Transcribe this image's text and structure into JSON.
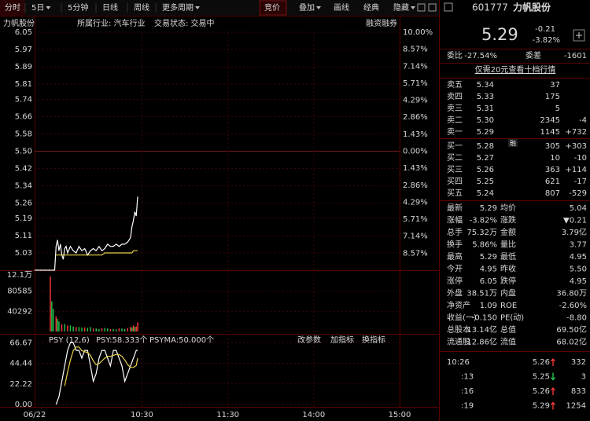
{
  "toolbar": {
    "left_tabs": [
      {
        "label": "分时"
      },
      {
        "label": "5日",
        "dropdown": true
      },
      {
        "label": "5分钟"
      },
      {
        "label": "日线"
      },
      {
        "label": "周线"
      },
      {
        "label": "更多周期",
        "dropdown": true
      }
    ],
    "right_tabs": [
      {
        "label": "竞价"
      },
      {
        "label": "叠加",
        "dropdown": true
      },
      {
        "label": "画线"
      },
      {
        "label": "经典"
      },
      {
        "label": "隐藏",
        "dropdown": true
      }
    ]
  },
  "chart_header": {
    "name": "力帆股份",
    "industry": "所属行业: 汽车行业",
    "status": "交易状态: 交易中",
    "margin": "融资融券"
  },
  "chart_data": [
    {
      "type": "line",
      "x": [
        -15,
        -1,
        0,
        1,
        2,
        3,
        4,
        5,
        6,
        7,
        8,
        10,
        12,
        14,
        16,
        18,
        20,
        22,
        24,
        26,
        28,
        30,
        32,
        34,
        36,
        38,
        40,
        42,
        44,
        46,
        48,
        50,
        52,
        53,
        54,
        55,
        56,
        57
      ],
      "series": [
        {
          "color": "#ffffff",
          "values": [
            4.95,
            4.95,
            5.06,
            5.09,
            5.04,
            5.07,
            5.02,
            5.0,
            5.05,
            5.06,
            5.03,
            5.06,
            5.04,
            5.03,
            5.06,
            5.04,
            5.05,
            5.02,
            5.04,
            5.05,
            5.04,
            5.06,
            5.04,
            5.05,
            5.07,
            5.06,
            5.06,
            5.07,
            5.06,
            5.07,
            5.07,
            5.08,
            5.1,
            5.15,
            5.18,
            5.22,
            5.2,
            5.29
          ]
        },
        {
          "color": "#e8d44c",
          "values": [
            null,
            null,
            5.02,
            5.02,
            5.02,
            5.02,
            5.02,
            5.02,
            5.02,
            5.02,
            5.02,
            5.02,
            5.02,
            5.02,
            5.02,
            5.02,
            5.02,
            5.02,
            5.02,
            5.02,
            5.02,
            5.02,
            5.02,
            5.03,
            5.03,
            5.03,
            5.03,
            5.03,
            5.03,
            5.03,
            5.03,
            5.03,
            5.03,
            5.03,
            5.04,
            5.04,
            5.04,
            5.04
          ]
        }
      ],
      "xlim": [
        -15,
        240
      ],
      "xticks": [
        {
          "value": -15,
          "label": "06/22"
        },
        {
          "value": 60,
          "label": "10:30"
        },
        {
          "value": 120,
          "label": "11:30"
        },
        {
          "value": 180,
          "label": "14:00"
        },
        {
          "value": 240,
          "label": "15:00"
        }
      ],
      "ylim": [
        4.95,
        6.05
      ],
      "yticks": [
        6.05,
        5.97,
        5.89,
        5.81,
        5.74,
        5.66,
        5.58,
        {
          "value": 5.5,
          "label": "5.50"
        },
        5.42,
        5.34,
        5.26,
        5.19,
        5.11,
        5.03
      ],
      "y2lim": [
        -10,
        10
      ],
      "y2ticks": [
        {
          "value": 10,
          "label": "10.00%"
        },
        {
          "value": 8.57,
          "label": "8.57%"
        },
        {
          "value": 7.14,
          "label": "7.14%"
        },
        {
          "value": 5.71,
          "label": "5.71%"
        },
        {
          "value": 4.29,
          "label": "4.29%"
        },
        {
          "value": 2.86,
          "label": "2.86%"
        },
        {
          "value": 1.43,
          "label": "1.43%"
        },
        {
          "value": 0,
          "label": "0.00%"
        },
        {
          "value": -1.43,
          "label": "1.43%"
        },
        {
          "value": -2.86,
          "label": "2.86%"
        },
        {
          "value": -4.29,
          "label": "4.29%"
        },
        {
          "value": -5.71,
          "label": "5.71%"
        },
        {
          "value": -7.14,
          "label": "7.14%"
        },
        {
          "value": -8.57,
          "label": "8.57%"
        }
      ],
      "grid": true
    },
    {
      "type": "bar",
      "series": [
        {
          "color": "#ff3a3a",
          "x": [
            -4,
            0,
            4,
            8,
            14,
            20,
            26,
            32,
            38,
            44,
            50,
            52,
            54,
            56,
            57
          ],
          "values": [
            110000,
            30000,
            14000,
            12000,
            9000,
            8000,
            6000,
            7000,
            5000,
            6000,
            7000,
            9000,
            12000,
            10000,
            18000
          ]
        },
        {
          "color": "#22c84a",
          "x": [
            -3,
            -2,
            1,
            2,
            6,
            10,
            12,
            16,
            18,
            22,
            24,
            28,
            30,
            34,
            36,
            40,
            42,
            46,
            48,
            53,
            55
          ],
          "values": [
            60000,
            45000,
            25000,
            20000,
            15000,
            12000,
            10000,
            9000,
            8000,
            7000,
            9000,
            6000,
            5000,
            7000,
            6000,
            5000,
            4000,
            6000,
            5000,
            8000,
            9000
          ]
        }
      ],
      "xlim": [
        -15,
        240
      ],
      "ylim": [
        0,
        121000
      ],
      "yticks": [
        {
          "value": 121000,
          "label": "12.1万"
        },
        80585,
        40292
      ]
    },
    {
      "type": "line",
      "indicator": "PSY (12,6)",
      "labels": [
        "PSY:58.333个",
        "PSYMA:50.000个"
      ],
      "buttons": [
        "改参数",
        "加指标",
        "换指标"
      ],
      "x": [
        0,
        2,
        4,
        6,
        8,
        10,
        12,
        14,
        16,
        18,
        20,
        22,
        24,
        26,
        28,
        30,
        32,
        34,
        36,
        38,
        40,
        42,
        44,
        46,
        48,
        50,
        52,
        54,
        56,
        57
      ],
      "series": [
        {
          "color": "#ffffff",
          "values": [
            0,
            8.33,
            25,
            41.67,
            58.33,
            66.67,
            66.67,
            58.33,
            58.33,
            50,
            58.33,
            58.33,
            41.67,
            25,
            33.33,
            50,
            58.33,
            58.33,
            50,
            41.67,
            58.33,
            58.33,
            50,
            41.67,
            25,
            33.33,
            41.67,
            50,
            58.33,
            58.33
          ]
        },
        {
          "color": "#e8d44c",
          "values": [
            null,
            null,
            null,
            20,
            35,
            48,
            58,
            62,
            62,
            58,
            57,
            56,
            53,
            47,
            43,
            44,
            47,
            50,
            52,
            52,
            53,
            54,
            54,
            52,
            48,
            43,
            40,
            40,
            42,
            50
          ]
        }
      ],
      "xlim": [
        -15,
        240
      ],
      "ylim": [
        0,
        72
      ],
      "yticks": [
        66.67,
        44.44,
        22.22,
        {
          "value": 0,
          "label": "0.00"
        }
      ]
    }
  ],
  "quote": {
    "code": "601777",
    "name": "力帆股份",
    "price": "5.29",
    "change": "-0.21",
    "change_pct": "-3.82%",
    "weibi_label": "委比",
    "weibi": "-27.54%",
    "weicha_label": "委差",
    "weicha": "-1601",
    "promo": "仅需20元查看十档行情",
    "margin_badge": "融",
    "sell": [
      [
        "卖五",
        "5.34",
        "37"
      ],
      [
        "卖四",
        "5.33",
        "175"
      ],
      [
        "卖三",
        "5.31",
        "5"
      ],
      [
        "卖二",
        "5.30",
        "2345",
        "-4"
      ],
      [
        "卖一",
        "5.29",
        "1145",
        "+732"
      ]
    ],
    "buy": [
      [
        "买一",
        "5.28",
        "305",
        "+303"
      ],
      [
        "买二",
        "5.27",
        "10",
        "-10"
      ],
      [
        "买三",
        "5.26",
        "363",
        "+114"
      ],
      [
        "买四",
        "5.25",
        "621",
        "-17"
      ],
      [
        "买五",
        "5.24",
        "807",
        "-529"
      ]
    ],
    "stats": [
      [
        {
          "label": "最新",
          "value": "5.29",
          "color": "#22d050"
        },
        {
          "label": "均价",
          "value": "5.04",
          "color": "#22d050"
        }
      ],
      [
        {
          "label": "涨幅",
          "value": "-3.82%",
          "color": "#22d050"
        },
        {
          "label": "涨跌",
          "value": "▼0.21",
          "color": "#22d050"
        }
      ],
      [
        {
          "label": "总手",
          "value": "75.32万",
          "color": "#e0e0e0"
        },
        {
          "label": "金额",
          "value": "3.79亿",
          "color": "#4aa8ff"
        }
      ],
      [
        {
          "label": "换手",
          "value": "5.86%",
          "color": "#e0e0e0"
        },
        {
          "label": "量比",
          "value": "3.77",
          "color": "#ff3a3a"
        }
      ],
      [
        {
          "label": "最高",
          "value": "5.29",
          "color": "#22d050"
        },
        {
          "label": "最低",
          "value": "4.95",
          "color": "#22d050"
        }
      ],
      [
        {
          "label": "今开",
          "value": "4.95",
          "color": "#22d050"
        },
        {
          "label": "昨收",
          "value": "5.50",
          "color": "#e0e0e0"
        }
      ],
      [
        {
          "label": "涨停",
          "value": "6.05",
          "color": "#ff3a3a"
        },
        {
          "label": "跌停",
          "value": "4.95",
          "color": "#22d050"
        }
      ],
      [
        {
          "label": "外盘",
          "value": "38.51万",
          "color": "#ff3a3a"
        },
        {
          "label": "内盘",
          "value": "36.80万",
          "color": "#22d050"
        }
      ],
      [
        {
          "label": "净资产",
          "value": "1.09",
          "color": "#e0e0e0"
        },
        {
          "label": "ROE",
          "value": "-2.60%",
          "color": "#e0e0e0"
        }
      ],
      [
        {
          "label": "收益(一)",
          "value": "-0.150",
          "color": "#e0e0e0"
        },
        {
          "label": "PE(动)",
          "value": "-8.80",
          "color": "#e0e0e0"
        }
      ],
      [
        {
          "label": "总股本",
          "value": "13.14亿",
          "color": "#e0e0e0"
        },
        {
          "label": "总值",
          "value": "69.50亿",
          "color": "#e0e0e0"
        }
      ],
      [
        {
          "label": "流通股",
          "value": "12.86亿",
          "color": "#e0e0e0"
        },
        {
          "label": "流值",
          "value": "68.02亿",
          "color": "#e0e0e0"
        }
      ]
    ],
    "ticks": [
      {
        "time": "10:26",
        "price": "5.26",
        "volume": "332",
        "dir": "up"
      },
      {
        "time": ":13",
        "price": "5.25",
        "volume": "3",
        "dir": "down"
      },
      {
        "time": ":16",
        "price": "5.26",
        "volume": "833",
        "dir": "up"
      },
      {
        "time": ":19",
        "price": "5.29",
        "volume": "1254",
        "dir": "up"
      }
    ]
  }
}
